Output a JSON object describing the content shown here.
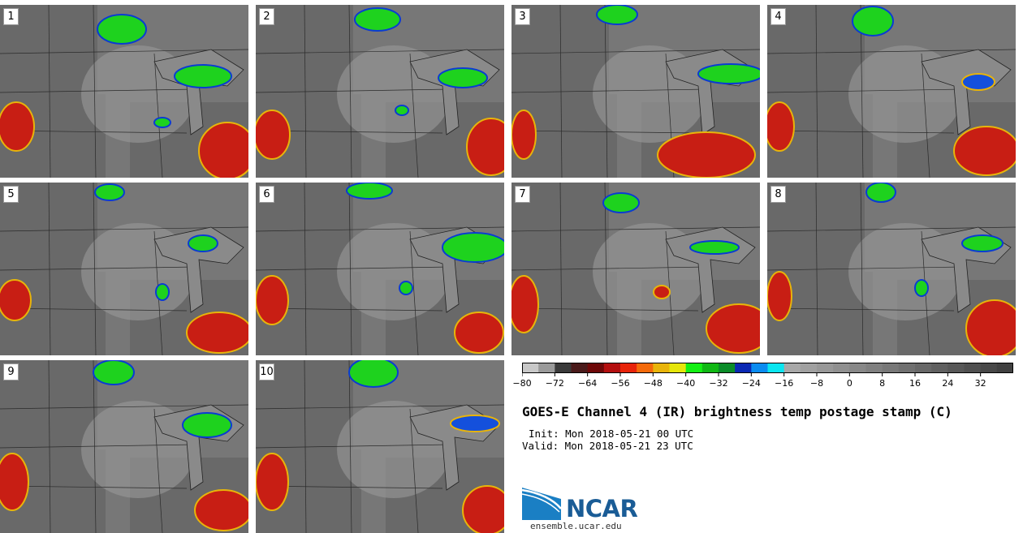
{
  "panels": [
    {
      "label": "1"
    },
    {
      "label": "2"
    },
    {
      "label": "3"
    },
    {
      "label": "4"
    },
    {
      "label": "5"
    },
    {
      "label": "6"
    },
    {
      "label": "7"
    },
    {
      "label": "8"
    },
    {
      "label": "9"
    },
    {
      "label": "10"
    }
  ],
  "title": "GOES-E Channel 4 (IR) brightness temp postage stamp (C)",
  "init_line": "Init: Mon 2018-05-21 00 UTC",
  "valid_line": "Valid: Mon 2018-05-21 23 UTC",
  "logo_text": "NCAR",
  "site": "ensemble.ucar.edu",
  "chart_data": {
    "type": "heatmap",
    "title": "GOES-E Channel 4 (IR) brightness temp postage stamp (C)",
    "colorbar": {
      "min": -80,
      "max": 40,
      "tick_labels": [
        "−80",
        "−72",
        "−64",
        "−56",
        "−48",
        "−40",
        "−32",
        "−24",
        "−16",
        "−8",
        "0",
        "8",
        "16",
        "24",
        "32"
      ],
      "tick_values": [
        -80,
        -72,
        -64,
        -56,
        -48,
        -40,
        -32,
        -24,
        -16,
        -8,
        0,
        8,
        16,
        24,
        32
      ],
      "colors": [
        "#c8c8c8",
        "#9a9a9a",
        "#3a3a3a",
        "#4a1a1a",
        "#6e0808",
        "#b40f0f",
        "#e8240a",
        "#f46a0a",
        "#e8b40a",
        "#e6e60a",
        "#14f014",
        "#10b814",
        "#0a8c28",
        "#0a28b4",
        "#0a8cf0",
        "#0ae6f0",
        "#a8a8a8",
        "#a0a0a0",
        "#989898",
        "#909090",
        "#888888",
        "#808080",
        "#787878",
        "#707070",
        "#686868",
        "#606060",
        "#585858",
        "#505050",
        "#484848",
        "#404040"
      ]
    },
    "ensemble_members": 10
  },
  "colors": {
    "map_background": "#777777",
    "land_dark": "#5f5f5f",
    "cloud_light": "#9a9a9a",
    "storm_red": "#c81e14",
    "storm_green": "#1ed21e",
    "storm_blue": "#1450dc",
    "ncar_blue": "#1a5c96"
  }
}
